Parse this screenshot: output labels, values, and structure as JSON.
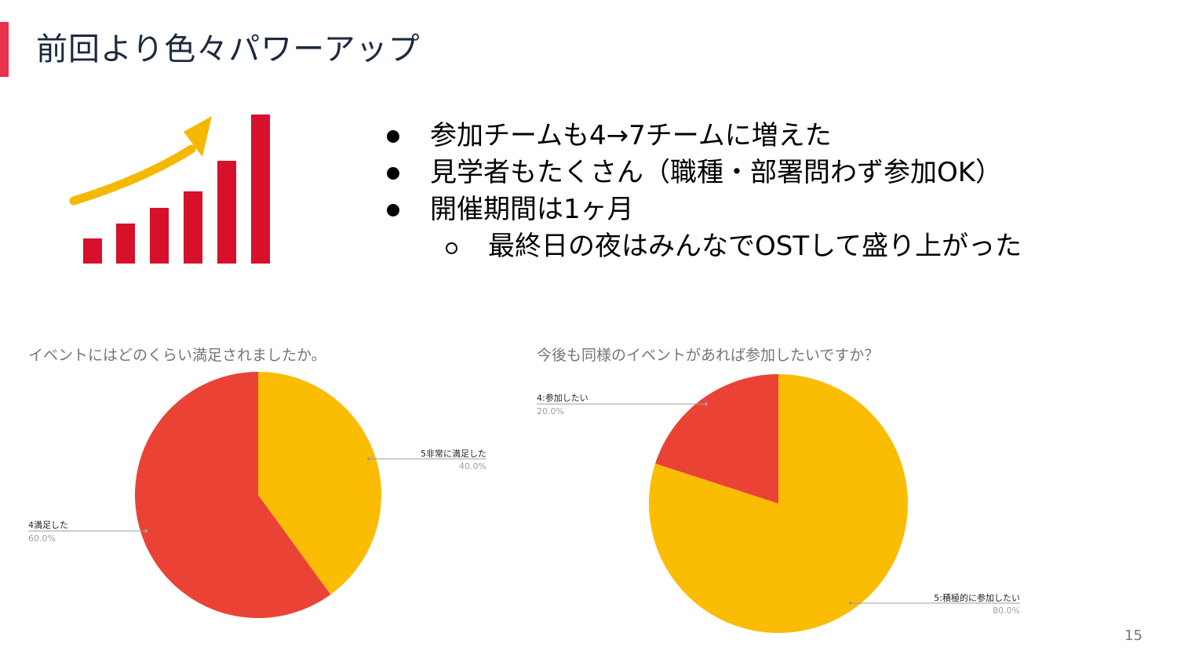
{
  "slide": {
    "title": "前回より色々パワーアップ",
    "page_number": "15"
  },
  "colors": {
    "accent": "#e8314a",
    "bar_red": "#d7102b",
    "arrow_yellow": "#f5b800",
    "pie_yellow": "#fbbc04",
    "pie_red": "#ea4335"
  },
  "illustration": {
    "icon": "growth-chart-arrow-icon"
  },
  "bullets": [
    {
      "level": 1,
      "text": "参加チームも4→7チームに増えた"
    },
    {
      "level": 1,
      "text": "見学者もたくさん（職種・部署問わず参加OK）"
    },
    {
      "level": 1,
      "text": "開催期間は1ヶ月"
    },
    {
      "level": 2,
      "text": "最終日の夜はみんなでOSTして盛り上がった"
    }
  ],
  "chart_data": [
    {
      "type": "pie",
      "title": "イベントにはどのくらい満足されましたか。",
      "slices": [
        {
          "label": "5非常に満足した",
          "value": 40.0,
          "percent_label": "40.0%",
          "color": "#fbbc04"
        },
        {
          "label": "4満足した",
          "value": 60.0,
          "percent_label": "60.0%",
          "color": "#ea4335"
        }
      ]
    },
    {
      "type": "pie",
      "title": "今後も同様のイベントがあれば参加したいですか？",
      "slices": [
        {
          "label": "5:積極的に参加したい",
          "value": 80.0,
          "percent_label": "80.0%",
          "color": "#fbbc04"
        },
        {
          "label": "4:参加したい",
          "value": 20.0,
          "percent_label": "20.0%",
          "color": "#ea4335"
        }
      ]
    }
  ]
}
